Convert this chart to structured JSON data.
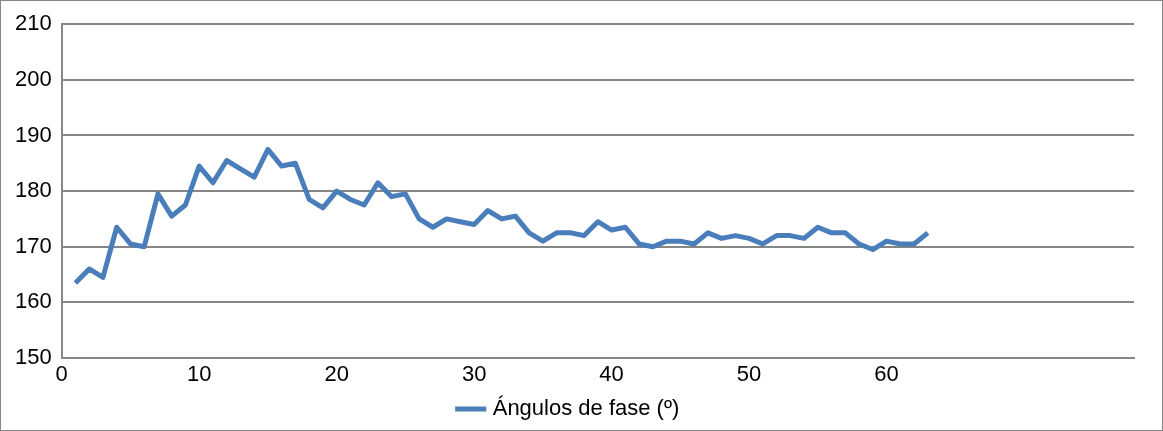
{
  "chart_data": {
    "type": "line",
    "x": [
      1,
      2,
      3,
      4,
      5,
      6,
      7,
      8,
      9,
      10,
      11,
      12,
      13,
      14,
      15,
      16,
      17,
      18,
      19,
      20,
      21,
      22,
      23,
      24,
      25,
      26,
      27,
      28,
      29,
      30,
      31,
      32,
      33,
      34,
      35,
      36,
      37,
      38,
      39,
      40,
      41,
      42,
      43,
      44,
      45,
      46,
      47,
      48,
      49,
      50,
      51,
      52,
      53,
      54,
      55,
      56,
      57,
      58,
      59,
      60,
      61,
      62,
      63
    ],
    "series": [
      {
        "name": "Ángulos de fase (º)",
        "color": "#4a7ebb",
        "values": [
          163.5,
          166,
          164.5,
          173.5,
          170.5,
          170,
          179.5,
          175.5,
          177.5,
          184.5,
          181.5,
          185.5,
          184,
          182.5,
          187.5,
          184.5,
          185,
          178.5,
          177,
          180,
          178.5,
          177.5,
          181.5,
          179,
          179.5,
          175,
          173.5,
          175,
          174.5,
          174,
          176.5,
          175,
          175.5,
          172.5,
          171,
          172.5,
          172.5,
          172,
          174.5,
          173,
          173.5,
          170.5,
          170,
          171,
          171,
          170.5,
          172.5,
          171.5,
          172,
          171.5,
          170.5,
          172,
          172,
          171.5,
          173.5,
          172.5,
          172.5,
          170.5,
          169.5,
          171,
          170.5,
          170.5,
          172.5
        ]
      }
    ],
    "xlim": [
      0,
      78
    ],
    "xticks": [
      0,
      10,
      20,
      30,
      40,
      50,
      60
    ],
    "ylim": [
      150,
      210
    ],
    "yticks": [
      150,
      160,
      170,
      180,
      190,
      200,
      210
    ],
    "grid": "y",
    "legend": "bottom",
    "marker": "none",
    "line_style": "solid"
  }
}
